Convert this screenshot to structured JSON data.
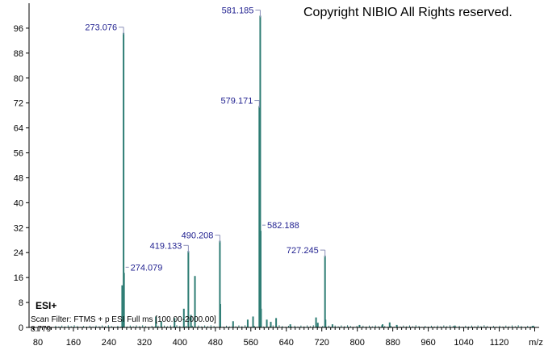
{
  "copyright": "Copyright NIBIO All Rights reserved.",
  "ion_mode": "ESI+",
  "scan_filter": "Scan Filter: FTMS + p ESI Full ms [100.00-2000.00]",
  "base_peak_label": "8.779",
  "chart_data": {
    "type": "bar",
    "xlabel": "m/z",
    "ylabel": "",
    "xlim": [
      60,
      1210
    ],
    "ylim": [
      0,
      104
    ],
    "x_ticks": [
      80,
      160,
      240,
      320,
      400,
      480,
      560,
      640,
      720,
      800,
      880,
      960,
      1040,
      1120
    ],
    "y_ticks": [
      0,
      8,
      16,
      24,
      32,
      40,
      48,
      56,
      64,
      72,
      80,
      88,
      96
    ],
    "colors": {
      "bar": "#2e7d74",
      "label": "#1f1f8f",
      "axis": "#000000"
    },
    "peaks": [
      {
        "mz": 273.076,
        "value": 94.5,
        "label": "273.076"
      },
      {
        "mz": 274.079,
        "value": 17.5,
        "label": "274.079"
      },
      {
        "mz": 270.0,
        "value": 13.5
      },
      {
        "mz": 419.133,
        "value": 24.5,
        "label": "419.133"
      },
      {
        "mz": 434.0,
        "value": 16.5
      },
      {
        "mz": 409.0,
        "value": 6.0
      },
      {
        "mz": 425.0,
        "value": 4.0
      },
      {
        "mz": 388.0,
        "value": 3.0
      },
      {
        "mz": 346.0,
        "value": 3.5
      },
      {
        "mz": 358.0,
        "value": 2.0
      },
      {
        "mz": 490.208,
        "value": 27.8,
        "label": "490.208"
      },
      {
        "mz": 491.2,
        "value": 7.5
      },
      {
        "mz": 520.0,
        "value": 2.0
      },
      {
        "mz": 553.0,
        "value": 2.5
      },
      {
        "mz": 565.0,
        "value": 3.5
      },
      {
        "mz": 579.171,
        "value": 71.0,
        "label": "579.171"
      },
      {
        "mz": 581.185,
        "value": 100.0,
        "label": "581.185"
      },
      {
        "mz": 582.188,
        "value": 31.0,
        "label": "582.188"
      },
      {
        "mz": 583.0,
        "value": 6.0
      },
      {
        "mz": 596.0,
        "value": 2.5
      },
      {
        "mz": 605.0,
        "value": 1.8
      },
      {
        "mz": 617.0,
        "value": 3.0
      },
      {
        "mz": 649.0,
        "value": 1.0
      },
      {
        "mz": 707.0,
        "value": 3.2
      },
      {
        "mz": 711.0,
        "value": 1.5
      },
      {
        "mz": 727.245,
        "value": 23.0,
        "label": "727.245"
      },
      {
        "mz": 728.3,
        "value": 2.5
      },
      {
        "mz": 744.0,
        "value": 1.0
      },
      {
        "mz": 805.0,
        "value": 0.8
      },
      {
        "mz": 857.0,
        "value": 1.0
      },
      {
        "mz": 873.0,
        "value": 1.6
      },
      {
        "mz": 889.0,
        "value": 0.8
      },
      {
        "mz": 1020.0,
        "value": 0.6
      },
      {
        "mz": 1195.0,
        "value": 0.5
      }
    ]
  }
}
